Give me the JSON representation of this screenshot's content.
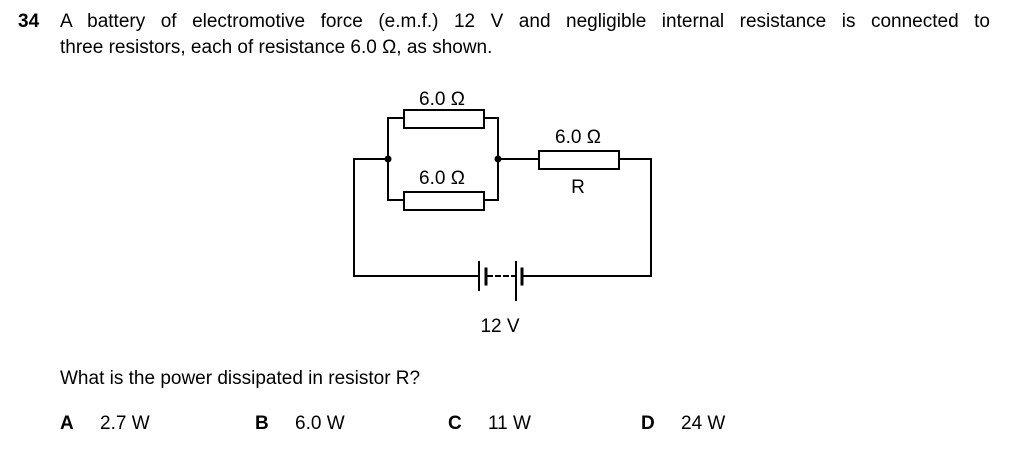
{
  "question": {
    "number": "34",
    "line1": "A battery of electromotive force (e.m.f.) 12 V and negligible internal resistance is connected to",
    "line2": "three resistors, each of resistance 6.0 Ω, as shown."
  },
  "circuit": {
    "resistor_top_label": "6.0 Ω",
    "resistor_middle_label": "6.0 Ω",
    "resistor_right_label": "6.0 Ω",
    "resistor_right_name": "R",
    "battery_label": "12 V"
  },
  "prompt": "What is the power dissipated in resistor R?",
  "options": [
    {
      "letter": "A",
      "text": "2.7 W"
    },
    {
      "letter": "B",
      "text": "6.0 W"
    },
    {
      "letter": "C",
      "text": "11 W"
    },
    {
      "letter": "D",
      "text": "24 W"
    }
  ]
}
